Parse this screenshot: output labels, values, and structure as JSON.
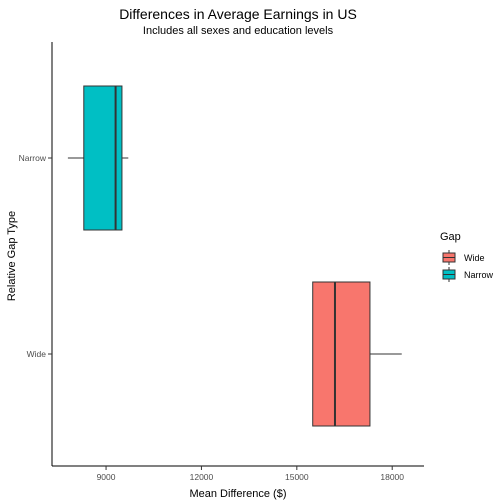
{
  "chart_data": {
    "type": "boxplot",
    "orientation": "horizontal",
    "title": "Differences in Average Earnings in US",
    "subtitle": "Includes all sexes and education levels",
    "xlabel": "Mean Difference ($)",
    "ylabel": "Relative Gap Type",
    "xlim": [
      7300,
      19000
    ],
    "x_ticks": [
      9000,
      12000,
      15000,
      18000
    ],
    "categories": [
      "Narrow",
      "Wide"
    ],
    "series": [
      {
        "category": "Narrow",
        "min": 7800,
        "q1": 8300,
        "median": 9300,
        "q3": 9500,
        "max": 9700,
        "color": "#00BFC4"
      },
      {
        "category": "Wide",
        "min": 15500,
        "q1": 15500,
        "median": 16200,
        "q3": 17300,
        "max": 18300,
        "color": "#F8766D"
      }
    ],
    "legend": {
      "title": "Gap",
      "position": "right",
      "entries": [
        {
          "label": "Wide",
          "color": "#F8766D"
        },
        {
          "label": "Narrow",
          "color": "#00BFC4"
        }
      ]
    },
    "grid": false
  }
}
